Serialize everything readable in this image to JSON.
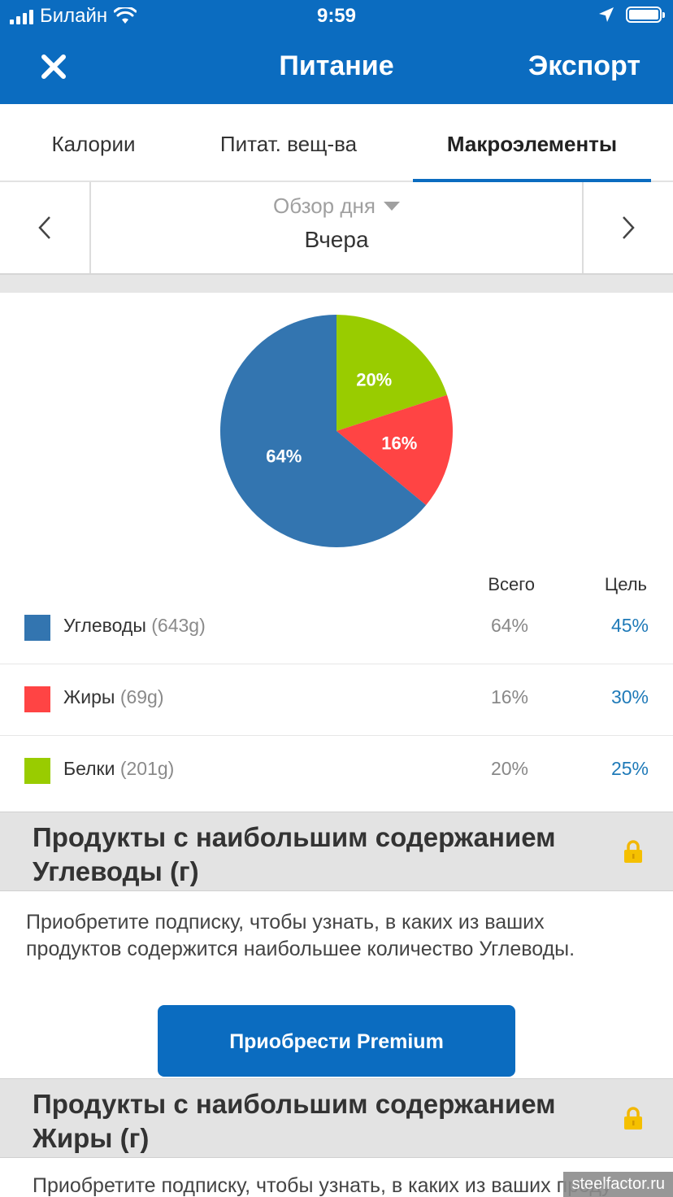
{
  "status_bar": {
    "carrier": "Билайн",
    "time": "9:59"
  },
  "nav": {
    "title": "Питание",
    "export_label": "Экспорт"
  },
  "tabs": [
    {
      "label": "Калории",
      "active": false
    },
    {
      "label": "Питат. вещ-ва",
      "active": false
    },
    {
      "label": "Макроэлементы",
      "active": true
    }
  ],
  "date_switcher": {
    "subtitle": "Обзор дня",
    "date": "Вчера"
  },
  "chart_data": {
    "type": "pie",
    "slices": [
      {
        "label": "Углеводы",
        "value": 64,
        "display": "64%",
        "color": "#3375b0"
      },
      {
        "label": "Жиры",
        "value": 16,
        "display": "16%",
        "color": "#ff4444"
      },
      {
        "label": "Белки",
        "value": 20,
        "display": "20%",
        "color": "#99cc00"
      }
    ]
  },
  "table": {
    "col_total": "Всего",
    "col_goal": "Цель",
    "rows": [
      {
        "name": "Углеводы",
        "amount": "(643g)",
        "total": "64%",
        "goal": "45%",
        "color": "#3375b0"
      },
      {
        "name": "Жиры",
        "amount": "(69g)",
        "total": "16%",
        "goal": "30%",
        "color": "#ff4444"
      },
      {
        "name": "Белки",
        "amount": "(201g)",
        "total": "20%",
        "goal": "25%",
        "color": "#99cc00"
      }
    ]
  },
  "sections": [
    {
      "title": "Продукты с наибольшим содержанием Углеводы (г)",
      "body": "Приобретите подписку, чтобы узнать, в каких из ваших продуктов содержится наибольшее количество Углеводы.",
      "button": "Приобрести Premium"
    },
    {
      "title": "Продукты с наибольшим содержанием Жиры (г)",
      "body": "Приобретите подписку, чтобы узнать, в каких из ваших проду"
    }
  ],
  "watermark": "steelfactor.ru",
  "colors": {
    "brand": "#0b6cc0",
    "goal_text": "#1f7ab8"
  }
}
